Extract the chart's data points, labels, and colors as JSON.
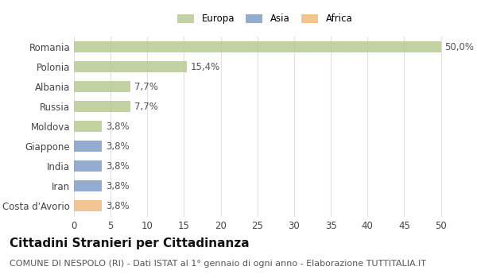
{
  "categories": [
    "Romania",
    "Polonia",
    "Albania",
    "Russia",
    "Moldova",
    "Giappone",
    "India",
    "Iran",
    "Costa d'Avorio"
  ],
  "values": [
    50.0,
    15.4,
    7.7,
    7.7,
    3.8,
    3.8,
    3.8,
    3.8,
    3.8
  ],
  "labels": [
    "50,0%",
    "15,4%",
    "7,7%",
    "7,7%",
    "3,8%",
    "3,8%",
    "3,8%",
    "3,8%",
    "3,8%"
  ],
  "colors": [
    "#b5c98e",
    "#b5c98e",
    "#b5c98e",
    "#b5c98e",
    "#b5c98e",
    "#7b9bc8",
    "#7b9bc8",
    "#7b9bc8",
    "#f0b87a"
  ],
  "legend_labels": [
    "Europa",
    "Asia",
    "Africa"
  ],
  "legend_colors": [
    "#b5c98e",
    "#7b9bc8",
    "#f0b87a"
  ],
  "xlim": [
    0,
    52
  ],
  "xticks": [
    0,
    5,
    10,
    15,
    20,
    25,
    30,
    35,
    40,
    45,
    50
  ],
  "title": "Cittadini Stranieri per Cittadinanza",
  "subtitle": "COMUNE DI NESPOLO (RI) - Dati ISTAT al 1° gennaio di ogni anno - Elaborazione TUTTITALIA.IT",
  "background_color": "#ffffff",
  "grid_color": "#e0e0e0",
  "bar_height": 0.55,
  "label_fontsize": 8.5,
  "tick_fontsize": 8.5,
  "title_fontsize": 11,
  "subtitle_fontsize": 8
}
